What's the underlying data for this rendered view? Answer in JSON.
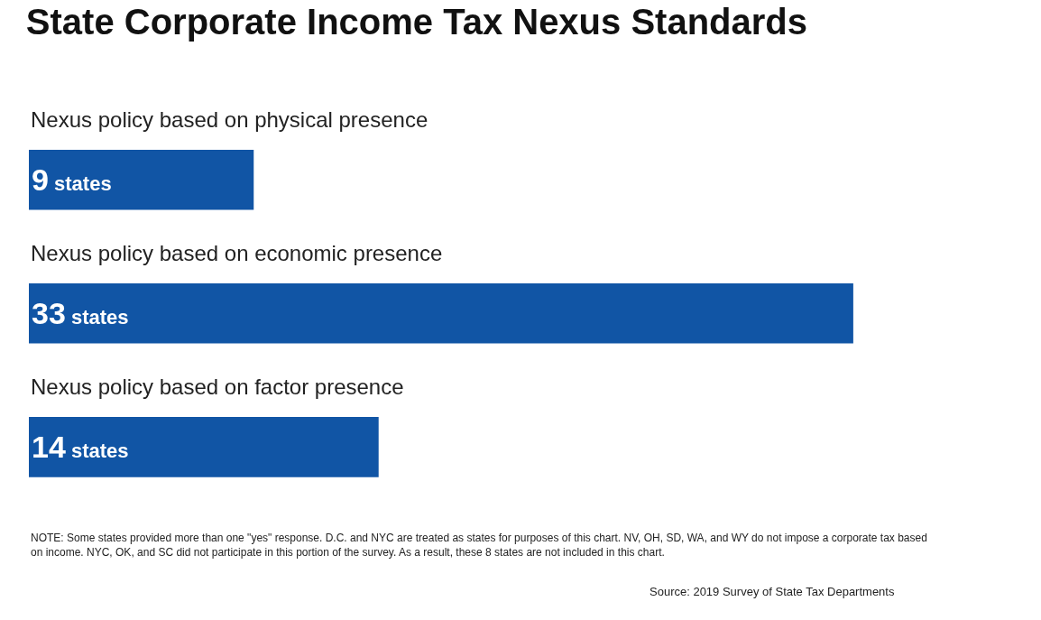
{
  "chart_data": {
    "type": "bar",
    "orientation": "horizontal",
    "title": "State Corporate Income Tax Nexus Standards",
    "categories": [
      "Nexus policy based on physical presence",
      "Nexus policy based on economic presence",
      "Nexus policy based on factor presence"
    ],
    "values": [
      9,
      33,
      14
    ],
    "value_labels": [
      "9 states",
      "33 states",
      "14 states"
    ],
    "color": "#1155a5",
    "tick_labels": false,
    "annotations": [
      "NOTE: Some states provided more than one \"yes\" response. D.C. and NYC are treated as states for purposes of this chart. NV, OH, SD, WA, and WY do not impose a corporate tax based on income. NYC, OK, and SC did not participate in this portion of the survey. As a result, these 8 states are not included in this chart.",
      "Source: 2019 Survey of State Tax Departments"
    ]
  }
}
